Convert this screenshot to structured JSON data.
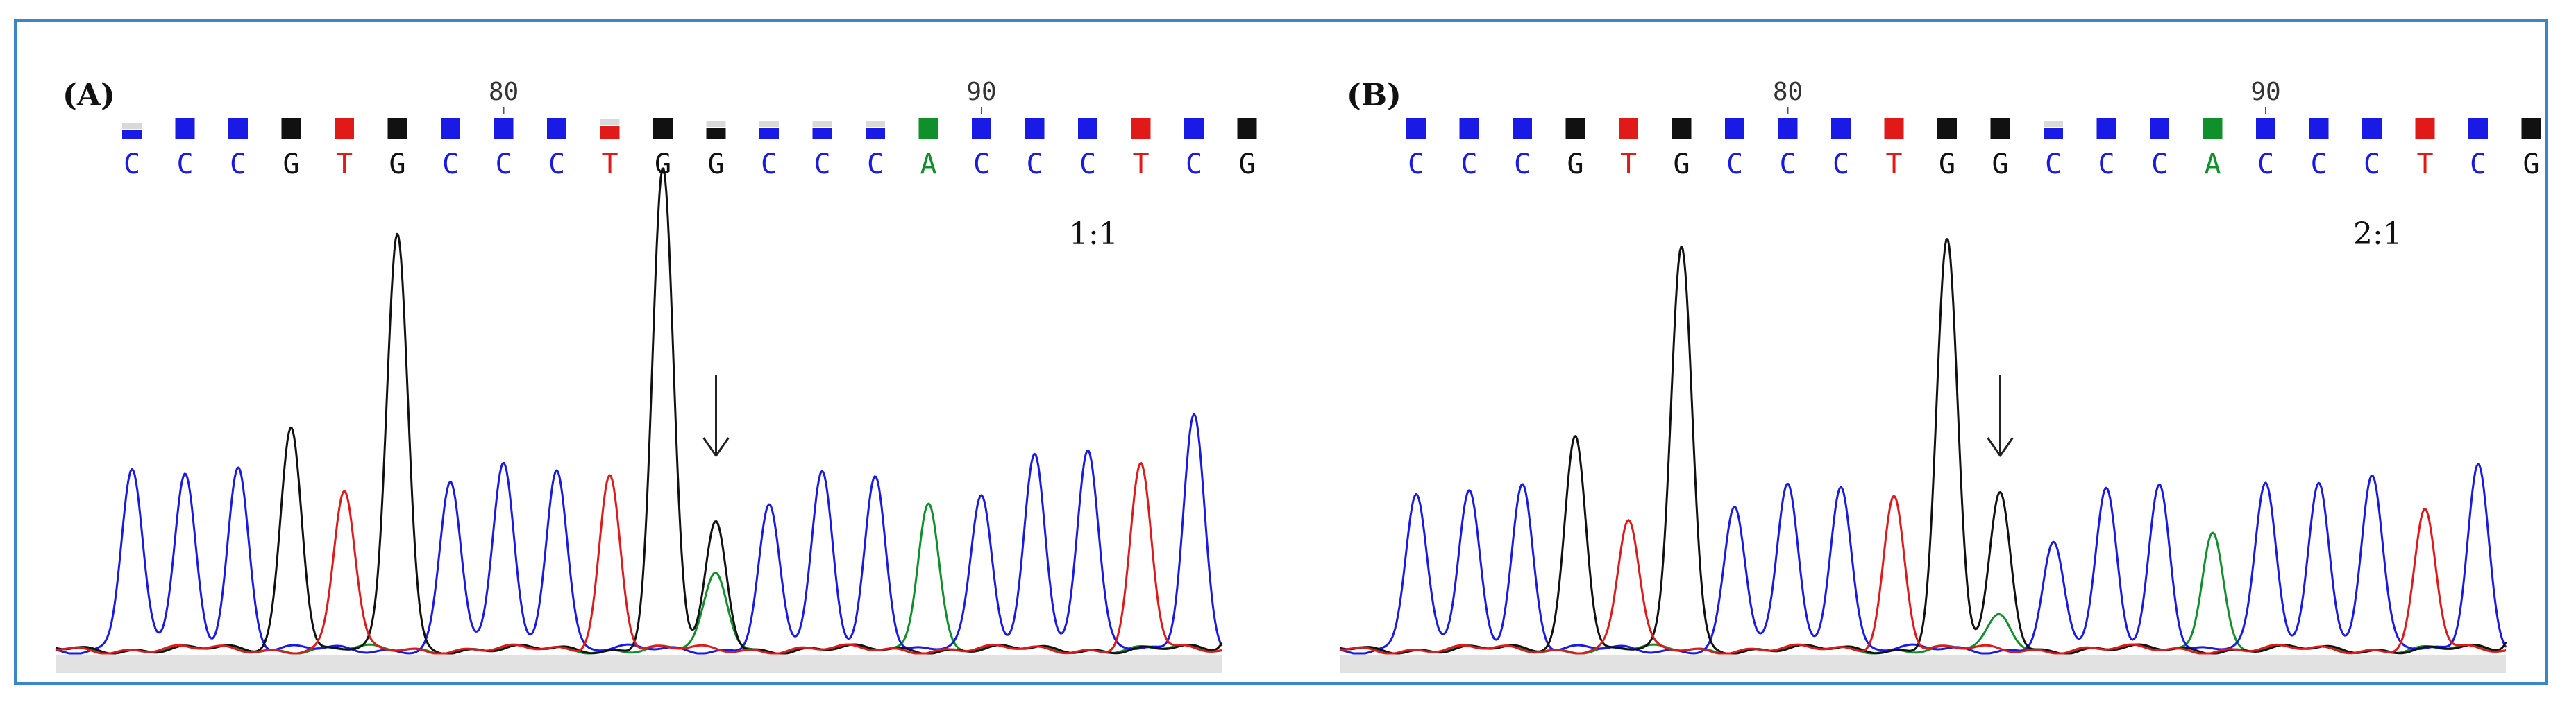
{
  "colors": {
    "A": "#10902a",
    "C": "#1a1ae6",
    "G": "#111111",
    "T": "#e01919",
    "frame": "#3a86c8",
    "baseline": "#e2e2e2"
  },
  "chart_data": [
    {
      "type": "line",
      "panel_label": "(A)",
      "ratio_label": "1:1",
      "position_ticks": [
        {
          "label": "80",
          "index": 7
        },
        {
          "label": "90",
          "index": 16
        }
      ],
      "sequence": [
        "C",
        "C",
        "C",
        "G",
        "T",
        "G",
        "C",
        "C",
        "C",
        "T",
        "G",
        "G",
        "C",
        "C",
        "C",
        "A",
        "C",
        "C",
        "C",
        "T",
        "C",
        "G"
      ],
      "quality": [
        0.4,
        1,
        1,
        1,
        1,
        1,
        1,
        1,
        1,
        0.6,
        1,
        0.5,
        0.5,
        0.5,
        0.5,
        1,
        1,
        1,
        1,
        1,
        1,
        1
      ],
      "peak_heights": [
        0.43,
        0.42,
        0.44,
        0.54,
        0.38,
        1.0,
        0.4,
        0.45,
        0.44,
        0.42,
        1.15,
        0.3,
        0.34,
        0.42,
        0.42,
        0.36,
        0.37,
        0.48,
        0.48,
        0.44,
        0.57,
        0.38
      ],
      "secondary_peaks": [
        {
          "index": 11,
          "base": "A",
          "height": 0.18
        }
      ],
      "arrow_index": 11
    },
    {
      "type": "line",
      "panel_label": "(B)",
      "ratio_label": "2:1",
      "position_ticks": [
        {
          "label": "80",
          "index": 7
        },
        {
          "label": "90",
          "index": 16
        }
      ],
      "sequence": [
        "C",
        "C",
        "C",
        "G",
        "T",
        "G",
        "C",
        "C",
        "C",
        "T",
        "G",
        "G",
        "C",
        "C",
        "C",
        "A",
        "C",
        "C",
        "C",
        "T",
        "C",
        "G"
      ],
      "quality": [
        1,
        1,
        1,
        1,
        1,
        1,
        1,
        1,
        1,
        1,
        1,
        1,
        0.5,
        1,
        1,
        1,
        1,
        1,
        1,
        1,
        1,
        1
      ],
      "peak_heights": [
        0.37,
        0.38,
        0.4,
        0.52,
        0.31,
        0.97,
        0.34,
        0.4,
        0.4,
        0.37,
        0.98,
        0.37,
        0.25,
        0.38,
        0.4,
        0.29,
        0.4,
        0.41,
        0.42,
        0.33,
        0.45,
        0.41
      ],
      "secondary_peaks": [
        {
          "index": 11,
          "base": "A",
          "height": 0.08
        }
      ],
      "arrow_index": 11
    }
  ]
}
